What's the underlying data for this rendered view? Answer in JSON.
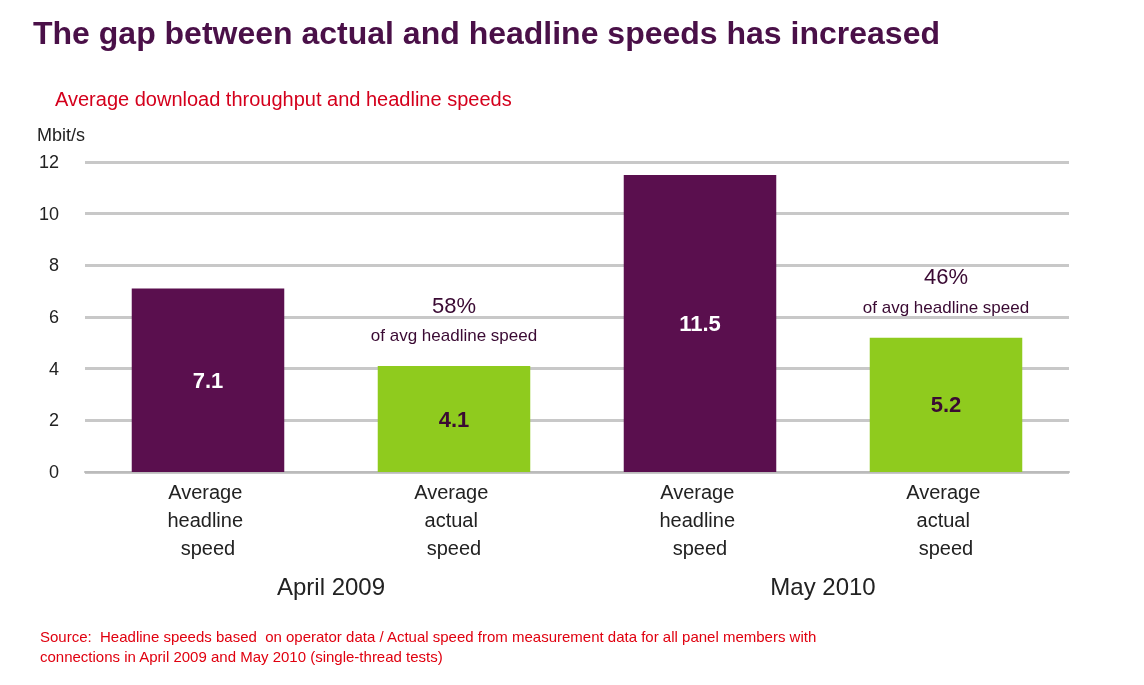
{
  "chart_data": {
    "type": "bar",
    "title": "The gap between actual and headline speeds has increased",
    "subtitle": "Average download throughput and headline speeds",
    "ylabel": "Mbit/s",
    "categories": [
      "Average headline speed",
      "Average actual speed",
      "Average headline speed",
      "Average actual speed"
    ],
    "values": [
      7.1,
      4.1,
      11.5,
      5.2
    ],
    "colors": [
      "#5a0f4e",
      "#8fcb1e",
      "#5a0f4e",
      "#8fcb1e"
    ],
    "ylim": [
      0,
      12
    ],
    "yticks": [
      0,
      2,
      4,
      6,
      8,
      10,
      12
    ],
    "grid": "y",
    "data_labels": true,
    "annotations": [
      "58%",
      "of avg headline speed",
      "46%",
      "of avg headline speed",
      "April 2009",
      "May 2010",
      "Source:  Headline speeds based  on operator data / Actual speed from measurement data for all panel members with connections in April 2009 and May 2010 (single-thread tests)"
    ]
  }
}
